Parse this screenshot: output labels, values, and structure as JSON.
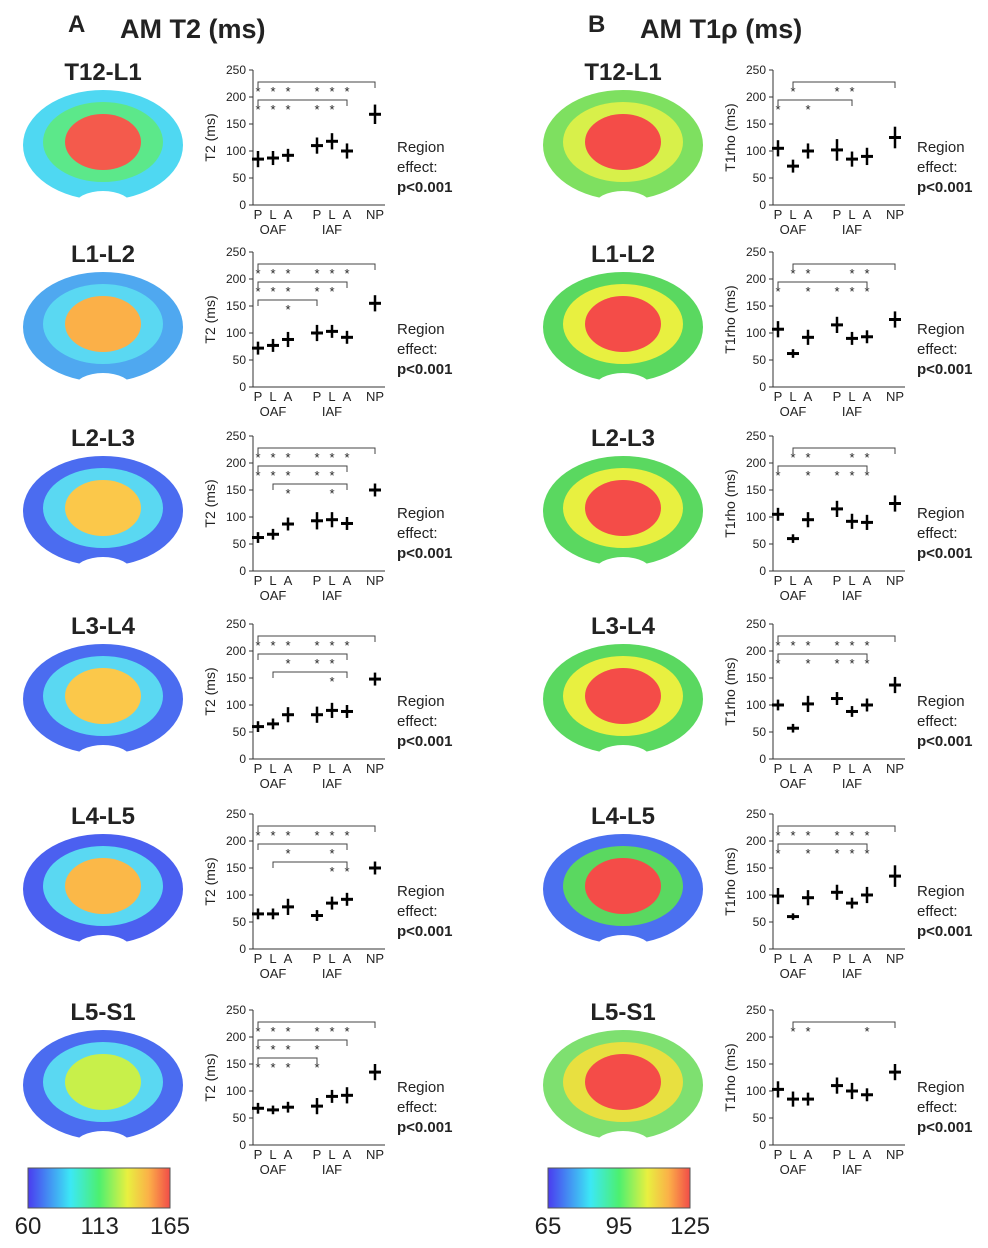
{
  "panels": [
    {
      "letter": "A",
      "title": "AM T2 (ms)",
      "colorbar_ticks": [
        60,
        113,
        165
      ]
    },
    {
      "letter": "B",
      "title": "AM T1ρ (ms)",
      "colorbar_ticks": [
        65,
        95,
        125
      ]
    }
  ],
  "chart_data": [
    {
      "type": "dot",
      "title": "T12-L1",
      "ylabel": "T2 (ms)",
      "categories": [
        "P",
        "L",
        "A",
        "P",
        "L",
        "A",
        "NP"
      ],
      "groups": [
        "OAF",
        "IAF"
      ],
      "values": [
        85,
        87,
        92,
        110,
        118,
        100,
        168
      ],
      "errors": [
        15,
        13,
        12,
        15,
        15,
        14,
        18
      ],
      "ylim": [
        0,
        250
      ],
      "yticks": [
        0,
        50,
        100,
        150,
        200,
        250
      ],
      "brackets": [
        {
          "from": 0,
          "to": 6,
          "label": "*",
          "stars": [
            0,
            1,
            2,
            3,
            4,
            5
          ]
        },
        {
          "from": 0,
          "to": 5,
          "label": "*",
          "stars": [
            0,
            1,
            2,
            3,
            4
          ]
        }
      ],
      "annotation": [
        "Region",
        "effect:",
        "p<0.001"
      ],
      "map": {
        "outer": "#4fd8f2",
        "inner": "#5ce88a",
        "nucleus": "#f45a4c"
      }
    },
    {
      "type": "dot",
      "title": "L1-L2",
      "ylabel": "T2 (ms)",
      "categories": [
        "P",
        "L",
        "A",
        "P",
        "L",
        "A",
        "NP"
      ],
      "groups": [
        "OAF",
        "IAF"
      ],
      "values": [
        72,
        77,
        88,
        100,
        103,
        92,
        155
      ],
      "errors": [
        12,
        12,
        14,
        15,
        12,
        12,
        15
      ],
      "ylim": [
        0,
        250
      ],
      "yticks": [
        0,
        50,
        100,
        150,
        200,
        250
      ],
      "brackets": [
        {
          "from": 0,
          "to": 6,
          "label": "*",
          "stars": [
            0,
            1,
            2,
            3,
            4,
            5
          ]
        },
        {
          "from": 0,
          "to": 5,
          "label": "*",
          "stars": [
            0,
            1,
            2,
            3,
            4
          ]
        },
        {
          "from": 0,
          "to": 3,
          "label": "*",
          "stars": [
            2
          ]
        }
      ],
      "annotation": [
        "Region",
        "effect:",
        "p<0.001"
      ],
      "map": {
        "outer": "#4fa8f0",
        "inner": "#5ad8f2",
        "nucleus": "#fbb048"
      }
    },
    {
      "type": "dot",
      "title": "L2-L3",
      "ylabel": "T2 (ms)",
      "categories": [
        "P",
        "L",
        "A",
        "P",
        "L",
        "A",
        "NP"
      ],
      "groups": [
        "OAF",
        "IAF"
      ],
      "values": [
        62,
        68,
        87,
        93,
        95,
        88,
        150
      ],
      "errors": [
        10,
        10,
        12,
        16,
        14,
        12,
        12
      ],
      "ylim": [
        0,
        250
      ],
      "yticks": [
        0,
        50,
        100,
        150,
        200,
        250
      ],
      "brackets": [
        {
          "from": 0,
          "to": 6,
          "label": "*",
          "stars": [
            0,
            1,
            2,
            3,
            4,
            5
          ]
        },
        {
          "from": 0,
          "to": 5,
          "label": "*",
          "stars": [
            0,
            1,
            2,
            3,
            4
          ]
        },
        {
          "from": 1,
          "to": 5,
          "label": "*",
          "stars": [
            2,
            4
          ]
        }
      ],
      "annotation": [
        "Region",
        "effect:",
        "p<0.001"
      ],
      "map": {
        "outer": "#4b6cf0",
        "inner": "#5ad8f2",
        "nucleus": "#fbc84a"
      }
    },
    {
      "type": "dot",
      "title": "L3-L4",
      "ylabel": "T2 (ms)",
      "categories": [
        "P",
        "L",
        "A",
        "P",
        "L",
        "A",
        "NP"
      ],
      "groups": [
        "OAF",
        "IAF"
      ],
      "values": [
        60,
        65,
        82,
        82,
        90,
        88,
        148
      ],
      "errors": [
        10,
        10,
        14,
        15,
        14,
        12,
        12
      ],
      "ylim": [
        0,
        250
      ],
      "yticks": [
        0,
        50,
        100,
        150,
        200,
        250
      ],
      "brackets": [
        {
          "from": 0,
          "to": 6,
          "label": "*",
          "stars": [
            0,
            1,
            2,
            3,
            4,
            5
          ]
        },
        {
          "from": 0,
          "to": 5,
          "label": "*",
          "stars": [
            2,
            3,
            4
          ]
        },
        {
          "from": 1,
          "to": 5,
          "label": "*",
          "stars": [
            4
          ]
        }
      ],
      "annotation": [
        "Region",
        "effect:",
        "p<0.001"
      ],
      "map": {
        "outer": "#4b6cf0",
        "inner": "#5ad8f2",
        "nucleus": "#fbc84a"
      }
    },
    {
      "type": "dot",
      "title": "L4-L5",
      "ylabel": "T2 (ms)",
      "categories": [
        "P",
        "L",
        "A",
        "P",
        "L",
        "A",
        "NP"
      ],
      "groups": [
        "OAF",
        "IAF"
      ],
      "values": [
        65,
        65,
        78,
        62,
        85,
        92,
        150
      ],
      "errors": [
        10,
        10,
        15,
        10,
        12,
        12,
        12
      ],
      "ylim": [
        0,
        250
      ],
      "yticks": [
        0,
        50,
        100,
        150,
        200,
        250
      ],
      "brackets": [
        {
          "from": 0,
          "to": 6,
          "label": "*",
          "stars": [
            0,
            1,
            2,
            3,
            4,
            5
          ]
        },
        {
          "from": 0,
          "to": 5,
          "label": "*",
          "stars": [
            2,
            4
          ]
        },
        {
          "from": 1,
          "to": 5,
          "label": "*",
          "stars": [
            4,
            5
          ]
        }
      ],
      "annotation": [
        "Region",
        "effect:",
        "p<0.001"
      ],
      "map": {
        "outer": "#4b60f0",
        "inner": "#5ad8f2",
        "nucleus": "#fbb848"
      }
    },
    {
      "type": "dot",
      "title": "L5-S1",
      "ylabel": "T2 (ms)",
      "categories": [
        "P",
        "L",
        "A",
        "P",
        "L",
        "A",
        "NP"
      ],
      "groups": [
        "OAF",
        "IAF"
      ],
      "values": [
        68,
        65,
        70,
        72,
        90,
        92,
        135
      ],
      "errors": [
        10,
        8,
        10,
        15,
        12,
        15,
        15
      ],
      "ylim": [
        0,
        250
      ],
      "yticks": [
        0,
        50,
        100,
        150,
        200,
        250
      ],
      "brackets": [
        {
          "from": 0,
          "to": 6,
          "label": "*",
          "stars": [
            0,
            1,
            2,
            3,
            4,
            5
          ]
        },
        {
          "from": 0,
          "to": 5,
          "label": "*",
          "stars": [
            0,
            1,
            2,
            3
          ]
        },
        {
          "from": 0,
          "to": 3,
          "label": "*",
          "stars": [
            0,
            1,
            2,
            3
          ]
        }
      ],
      "annotation": [
        "Region",
        "effect:",
        "p<0.001"
      ],
      "map": {
        "outer": "#4b6cf0",
        "inner": "#5ad8f2",
        "nucleus": "#c8f04a"
      }
    },
    {
      "type": "dot",
      "title": "T12-L1",
      "ylabel": "T1rho (ms)",
      "categories": [
        "P",
        "L",
        "A",
        "P",
        "L",
        "A",
        "NP"
      ],
      "groups": [
        "OAF",
        "IAF"
      ],
      "values": [
        105,
        72,
        100,
        102,
        85,
        90,
        125
      ],
      "errors": [
        15,
        12,
        14,
        20,
        14,
        16,
        20
      ],
      "ylim": [
        0,
        250
      ],
      "yticks": [
        0,
        50,
        100,
        150,
        200,
        250
      ],
      "brackets": [
        {
          "from": 1,
          "to": 6,
          "label": "*",
          "stars": [
            1,
            3,
            4
          ]
        },
        {
          "from": 0,
          "to": 4,
          "label": "*",
          "stars": [
            0,
            2
          ]
        }
      ],
      "annotation": [
        "Region",
        "effect:",
        "p<0.001"
      ],
      "map": {
        "outer": "#7ee060",
        "inner": "#d8f04a",
        "nucleus": "#f44c48"
      }
    },
    {
      "type": "dot",
      "title": "L1-L2",
      "ylabel": "T1rho (ms)",
      "categories": [
        "P",
        "L",
        "A",
        "P",
        "L",
        "A",
        "NP"
      ],
      "groups": [
        "OAF",
        "IAF"
      ],
      "values": [
        107,
        62,
        92,
        115,
        90,
        93,
        125
      ],
      "errors": [
        15,
        8,
        14,
        15,
        12,
        12,
        15
      ],
      "ylim": [
        0,
        250
      ],
      "yticks": [
        0,
        50,
        100,
        150,
        200,
        250
      ],
      "brackets": [
        {
          "from": 1,
          "to": 6,
          "label": "*",
          "stars": [
            1,
            2,
            4,
            5
          ]
        },
        {
          "from": 0,
          "to": 5,
          "label": "*",
          "stars": [
            0,
            2,
            3,
            4,
            5
          ]
        }
      ],
      "annotation": [
        "Region",
        "effect:",
        "p<0.001"
      ],
      "map": {
        "outer": "#5ad860",
        "inner": "#e8f040",
        "nucleus": "#f44c48"
      }
    },
    {
      "type": "dot",
      "title": "L2-L3",
      "ylabel": "T1rho (ms)",
      "categories": [
        "P",
        "L",
        "A",
        "P",
        "L",
        "A",
        "NP"
      ],
      "groups": [
        "OAF",
        "IAF"
      ],
      "values": [
        105,
        60,
        95,
        115,
        92,
        90,
        125
      ],
      "errors": [
        12,
        8,
        14,
        15,
        14,
        14,
        15
      ],
      "ylim": [
        0,
        250
      ],
      "yticks": [
        0,
        50,
        100,
        150,
        200,
        250
      ],
      "brackets": [
        {
          "from": 1,
          "to": 6,
          "label": "*",
          "stars": [
            1,
            2,
            4,
            5
          ]
        },
        {
          "from": 0,
          "to": 5,
          "label": "*",
          "stars": [
            0,
            2,
            3,
            4,
            5
          ]
        }
      ],
      "annotation": [
        "Region",
        "effect:",
        "p<0.001"
      ],
      "map": {
        "outer": "#5ad860",
        "inner": "#e8f040",
        "nucleus": "#f44c48"
      }
    },
    {
      "type": "dot",
      "title": "L3-L4",
      "ylabel": "T1rho (ms)",
      "categories": [
        "P",
        "L",
        "A",
        "P",
        "L",
        "A",
        "NP"
      ],
      "groups": [
        "OAF",
        "IAF"
      ],
      "values": [
        100,
        57,
        102,
        112,
        88,
        100,
        137
      ],
      "errors": [
        10,
        8,
        15,
        12,
        10,
        12,
        15
      ],
      "ylim": [
        0,
        250
      ],
      "yticks": [
        0,
        50,
        100,
        150,
        200,
        250
      ],
      "brackets": [
        {
          "from": 0,
          "to": 6,
          "label": "*",
          "stars": [
            0,
            1,
            2,
            3,
            4,
            5
          ]
        },
        {
          "from": 0,
          "to": 5,
          "label": "*",
          "stars": [
            0,
            2,
            3,
            4,
            5
          ]
        }
      ],
      "annotation": [
        "Region",
        "effect:",
        "p<0.001"
      ],
      "map": {
        "outer": "#5ad860",
        "inner": "#e8f040",
        "nucleus": "#f44c48"
      }
    },
    {
      "type": "dot",
      "title": "L4-L5",
      "ylabel": "T1rho (ms)",
      "categories": [
        "P",
        "L",
        "A",
        "P",
        "L",
        "A",
        "NP"
      ],
      "groups": [
        "OAF",
        "IAF"
      ],
      "values": [
        98,
        60,
        95,
        105,
        85,
        100,
        135
      ],
      "errors": [
        15,
        6,
        14,
        14,
        10,
        15,
        20
      ],
      "ylim": [
        0,
        250
      ],
      "yticks": [
        0,
        50,
        100,
        150,
        200,
        250
      ],
      "brackets": [
        {
          "from": 0,
          "to": 6,
          "label": "*",
          "stars": [
            0,
            1,
            2,
            3,
            4,
            5
          ]
        },
        {
          "from": 0,
          "to": 5,
          "label": "*",
          "stars": [
            0,
            2,
            3,
            4,
            5
          ]
        }
      ],
      "annotation": [
        "Region",
        "effect:",
        "p<0.001"
      ],
      "map": {
        "outer": "#4b70f0",
        "inner": "#5ad860",
        "nucleus": "#f44c48"
      }
    },
    {
      "type": "dot",
      "title": "L5-S1",
      "ylabel": "T1rho (ms)",
      "categories": [
        "P",
        "L",
        "A",
        "P",
        "L",
        "A",
        "NP"
      ],
      "groups": [
        "OAF",
        "IAF"
      ],
      "values": [
        103,
        85,
        85,
        110,
        100,
        93,
        135
      ],
      "errors": [
        15,
        14,
        12,
        15,
        15,
        12,
        15
      ],
      "ylim": [
        0,
        250
      ],
      "yticks": [
        0,
        50,
        100,
        150,
        200,
        250
      ],
      "brackets": [
        {
          "from": 1,
          "to": 6,
          "label": "*",
          "stars": [
            1,
            2,
            5
          ]
        }
      ],
      "annotation": [
        "Region",
        "effect:",
        "p<0.001"
      ],
      "map": {
        "outer": "#7ee070",
        "inner": "#e8e040",
        "nucleus": "#f44c48"
      }
    }
  ]
}
